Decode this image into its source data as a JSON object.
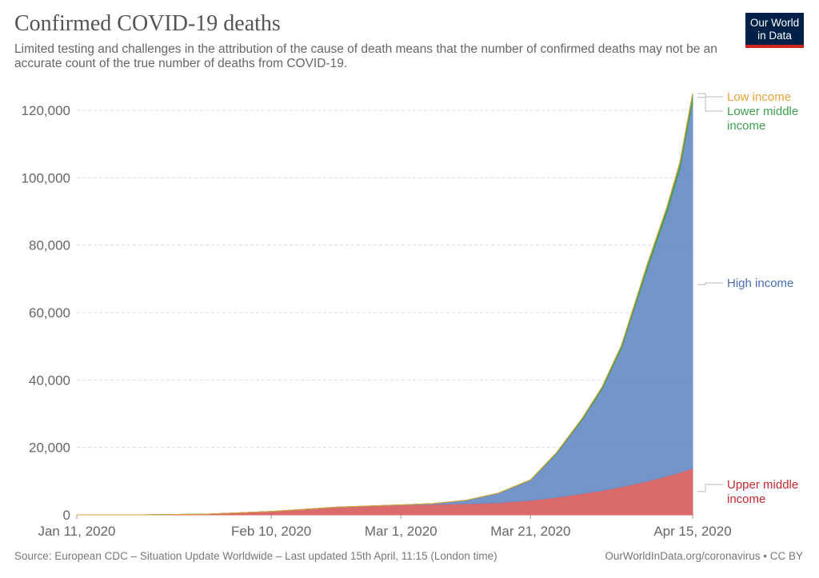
{
  "title": "Confirmed COVID-19 deaths",
  "subtitle": "Limited testing and challenges in the attribution of the cause of death means that the number of confirmed deaths may not be an accurate count of the true number of deaths from COVID-19.",
  "logo": {
    "line1": "Our World",
    "line2": "in Data"
  },
  "footer": {
    "source": "Source: European CDC – Situation Update Worldwide – Last updated 15th April, 11:15 (London time)",
    "credit": "OurWorldInData.org/coronavirus • CC BY"
  },
  "chart_data": {
    "type": "area",
    "stacked": true,
    "title": "Confirmed COVID-19 deaths",
    "ylim": [
      0,
      125000
    ],
    "xlim": [
      "2020-01-11",
      "2020-04-15"
    ],
    "grid": "horizontal dashed",
    "legend": "inline-right",
    "y_ticks": [
      0,
      20000,
      40000,
      60000,
      80000,
      100000,
      120000
    ],
    "y_tick_labels": [
      "0",
      "20,000",
      "40,000",
      "60,000",
      "80,000",
      "100,000",
      "120,000"
    ],
    "x_ticks": [
      "2020-01-11",
      "2020-02-10",
      "2020-03-01",
      "2020-03-21",
      "2020-04-15"
    ],
    "x_tick_labels": [
      "Jan 11, 2020",
      "Feb 10, 2020",
      "Mar 1, 2020",
      "Mar 21, 2020",
      "Apr 15, 2020"
    ],
    "x": [
      "2020-01-11",
      "2020-01-21",
      "2020-01-31",
      "2020-02-10",
      "2020-02-20",
      "2020-03-01",
      "2020-03-06",
      "2020-03-11",
      "2020-03-16",
      "2020-03-21",
      "2020-03-25",
      "2020-03-29",
      "2020-04-01",
      "2020-04-04",
      "2020-04-08",
      "2020-04-11",
      "2020-04-13",
      "2020-04-15"
    ],
    "series": [
      {
        "name": "Upper middle income",
        "color": "#d96262",
        "values": [
          0,
          6,
          213,
          1000,
          2250,
          2900,
          3100,
          3300,
          3600,
          4300,
          5200,
          6300,
          7200,
          8300,
          10000,
          11500,
          12500,
          13800
        ]
      },
      {
        "name": "High income",
        "color": "#6d8fc7",
        "values": [
          0,
          0,
          0,
          2,
          20,
          60,
          250,
          1000,
          2800,
          6000,
          13000,
          22000,
          30000,
          41000,
          63000,
          78000,
          90000,
          109000
        ]
      },
      {
        "name": "Lower middle income",
        "color": "#3f9e4e",
        "values": [
          0,
          0,
          0,
          0,
          0,
          0,
          5,
          15,
          40,
          100,
          250,
          450,
          650,
          900,
          1300,
          1600,
          1800,
          2100
        ]
      },
      {
        "name": "Low income",
        "color": "#e9a23b",
        "values": [
          0,
          0,
          0,
          0,
          0,
          0,
          0,
          0,
          0,
          2,
          5,
          10,
          20,
          40,
          70,
          90,
          110,
          150
        ]
      }
    ]
  }
}
